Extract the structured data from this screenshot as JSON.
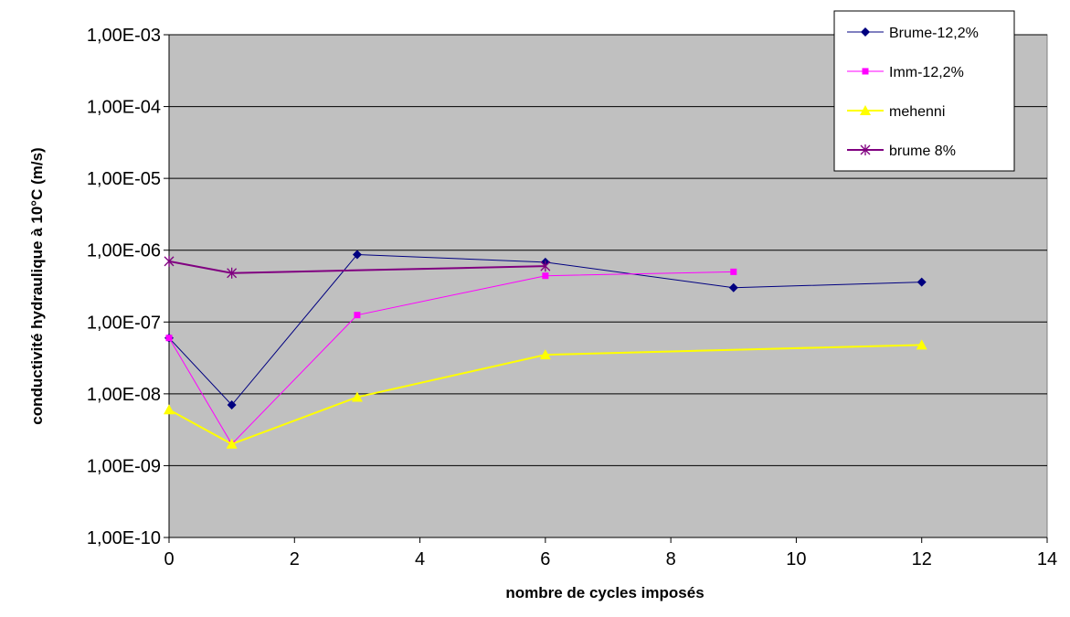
{
  "chart_data": {
    "type": "line",
    "title": "",
    "xlabel": "nombre de cycles imposés",
    "ylabel": "conductivité hydraulique à 10°C (m/s)",
    "xlim": [
      0,
      14
    ],
    "ylim": [
      1e-10,
      0.001
    ],
    "yscale": "log",
    "x_ticks": [
      0,
      2,
      4,
      6,
      8,
      10,
      12,
      14
    ],
    "x_tick_labels": [
      "0",
      "2",
      "4",
      "6",
      "8",
      "10",
      "12",
      "14"
    ],
    "y_ticks": [
      1e-10,
      1e-09,
      1e-08,
      1e-07,
      1e-06,
      1e-05,
      0.0001,
      0.001
    ],
    "y_tick_labels": [
      "1,00E-10",
      "1,00E-09",
      "1,00E-08",
      "1,00E-07",
      "1,00E-06",
      "1,00E-05",
      "1,00E-04",
      "1,00E-03"
    ],
    "grid": true,
    "plot_background": "#c0c0c0",
    "legend_position": "top-right",
    "series": [
      {
        "name": "Brume-12,2%",
        "color": "#000080",
        "marker": "diamond",
        "points": [
          [
            0,
            6e-08
          ],
          [
            1,
            7e-09
          ],
          [
            3,
            8.7e-07
          ],
          [
            6,
            6.8e-07
          ],
          [
            9,
            3e-07
          ],
          [
            12,
            3.6e-07
          ]
        ]
      },
      {
        "name": "Imm-12,2%",
        "color": "#ff00ff",
        "marker": "square",
        "points": [
          [
            0,
            6e-08
          ],
          [
            1,
            2e-09
          ],
          [
            3,
            1.25e-07
          ],
          [
            6,
            4.4e-07
          ],
          [
            9,
            5e-07
          ]
        ]
      },
      {
        "name": "mehenni",
        "color": "#ffff00",
        "marker": "triangle",
        "points": [
          [
            0,
            6e-09
          ],
          [
            1,
            2e-09
          ],
          [
            3,
            9e-09
          ],
          [
            6,
            3.5e-08
          ],
          [
            12,
            4.8e-08
          ]
        ]
      },
      {
        "name": "brume 8%",
        "color": "#800080",
        "marker": "star",
        "points": [
          [
            0,
            7e-07
          ],
          [
            1,
            4.8e-07
          ],
          [
            6,
            6e-07
          ]
        ]
      }
    ]
  }
}
